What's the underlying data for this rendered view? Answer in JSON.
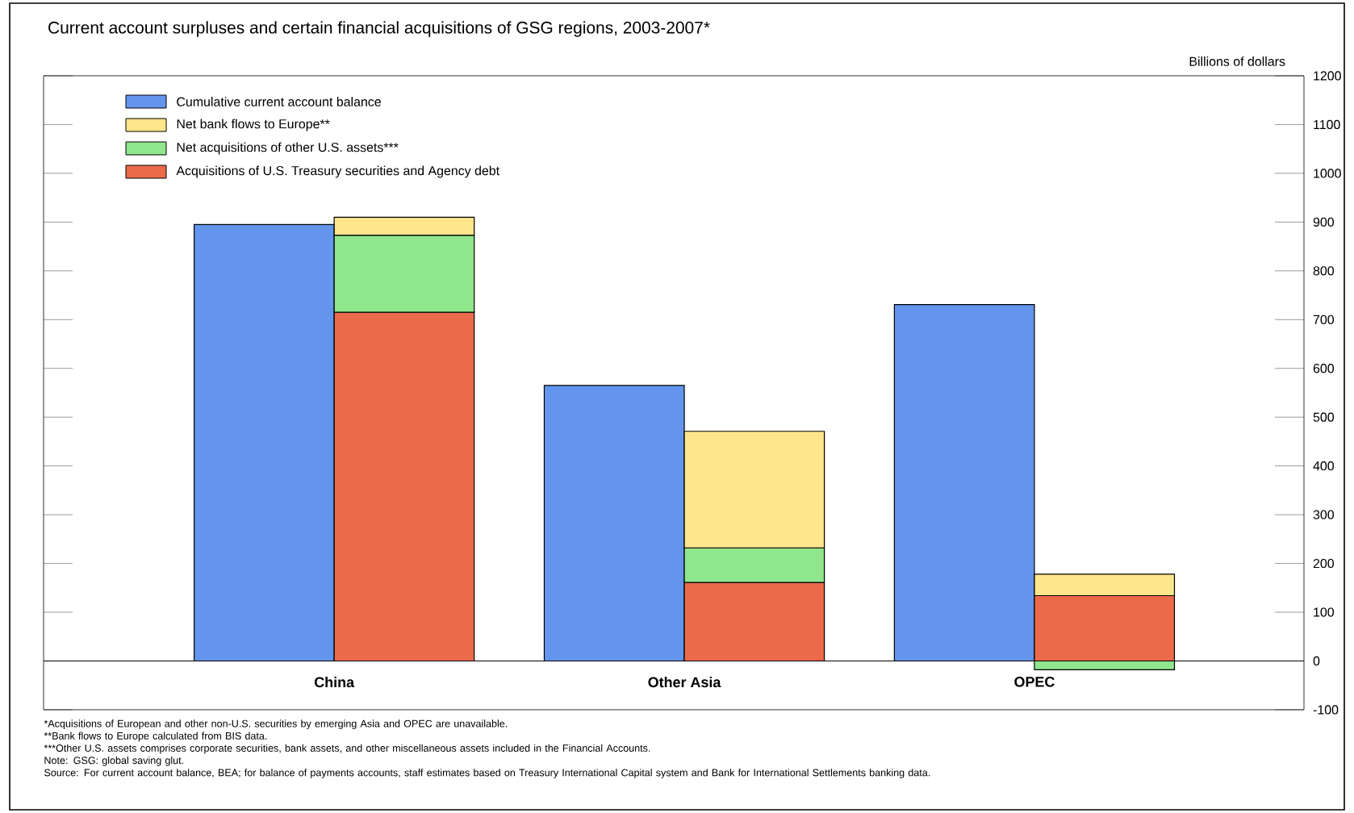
{
  "chart_data": {
    "type": "bar",
    "title": "Current account surpluses and certain financial acquisitions of GSG regions, 2003-2007*",
    "ylabel": "Billions of dollars",
    "categories": [
      "China",
      "Other Asia",
      "OPEC"
    ],
    "series": [
      {
        "name": "Cumulative current account balance",
        "color": "#6495ed",
        "values": [
          895,
          565,
          731
        ]
      },
      {
        "name": "Acquisitions of U.S. Treasury securities and Agency debt",
        "color": "#eb6a4a",
        "values": [
          715,
          161,
          134
        ],
        "base": [
          0,
          0,
          0
        ]
      },
      {
        "name": "Net acquisitions of other U.S. assets***",
        "color": "#90e68c",
        "values": [
          158,
          71,
          -18
        ],
        "base": [
          715,
          161,
          0
        ]
      },
      {
        "name": "Net bank flows to Europe**",
        "color": "#ffe68c",
        "values": [
          37,
          239,
          44
        ],
        "base": [
          873,
          232,
          134
        ]
      }
    ],
    "ylim": [
      -100,
      1200
    ],
    "yticks": [
      -100,
      0,
      100,
      200,
      300,
      400,
      500,
      600,
      700,
      800,
      900,
      1000,
      1100,
      1200
    ],
    "legend": "top left",
    "grid": false,
    "annotations": [
      "*Acquisitions of European and other non-U.S. securities by emerging Asia and OPEC are unavailable.",
      "**Bank flows to Europe calculated from BIS data.",
      "***Other U.S. assets comprises corporate securities, bank assets, and other miscellaneous assets included in the Financial Accounts.",
      "Note: GSG: global saving glut.",
      "Source: For current account balance, BEA; for balance of payments accounts, staff estimates based on Treasury International Capital system and Bank for International Settlements banking data."
    ]
  }
}
